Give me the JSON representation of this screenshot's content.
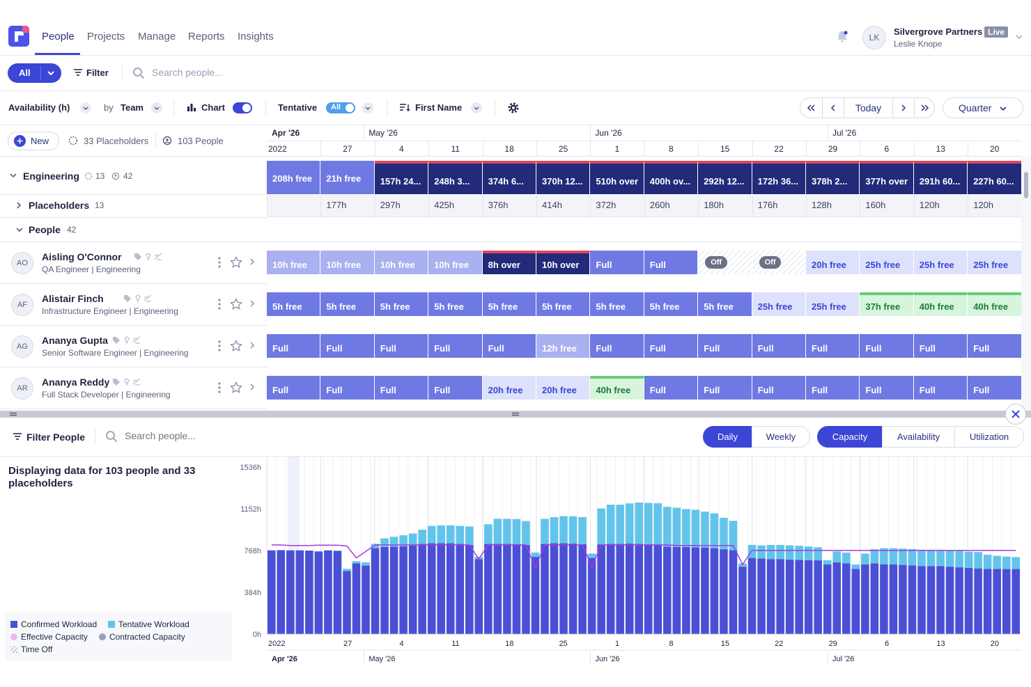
{
  "nav": {
    "tabs": [
      {
        "label": "People",
        "active": true
      },
      {
        "label": "Projects"
      },
      {
        "label": "Manage"
      },
      {
        "label": "Reports"
      },
      {
        "label": "Insights"
      }
    ],
    "avatar_initials": "LK",
    "org_name": "Silvergrove Partners",
    "org_badge": "Live",
    "user_name": "Leslie Knope"
  },
  "filterbar": {
    "all_label": "All",
    "filter_label": "Filter",
    "search_placeholder": "Search people..."
  },
  "toolbar": {
    "metric_label": "Availability (h)",
    "by_label": "by",
    "group_label": "Team",
    "chart_label": "Chart",
    "tentative_label": "Tentative",
    "tentative_value": "All",
    "sort_label": "First Name",
    "today_label": "Today",
    "range_label": "Quarter"
  },
  "leftheader": {
    "new_label": "New",
    "placeholders_label": "33 Placeholders",
    "people_label": "103 People"
  },
  "timeline": {
    "months": [
      {
        "label": "Apr '26",
        "col": 0
      },
      {
        "label": "May '26",
        "col": 1.8
      },
      {
        "label": "Jun '26",
        "col": 6
      },
      {
        "label": "Jul '26",
        "col": 10.4
      }
    ],
    "year_stub": "2022",
    "weeks": [
      "",
      "27",
      "4",
      "11",
      "18",
      "25",
      "1",
      "8",
      "15",
      "22",
      "29",
      "6",
      "13",
      "20"
    ]
  },
  "engineering": {
    "label": "Engineering",
    "placeholders_count": "13",
    "people_count": "42",
    "cells": [
      {
        "label": "208h free",
        "kind": "free"
      },
      {
        "label": "21h free",
        "kind": "free"
      },
      {
        "label": "157h 24...",
        "kind": "over"
      },
      {
        "label": "248h 3...",
        "kind": "over"
      },
      {
        "label": "374h 6...",
        "kind": "over"
      },
      {
        "label": "370h 12...",
        "kind": "over"
      },
      {
        "label": "510h over",
        "kind": "over"
      },
      {
        "label": "400h ov...",
        "kind": "over"
      },
      {
        "label": "292h 12...",
        "kind": "over"
      },
      {
        "label": "172h 36...",
        "kind": "over"
      },
      {
        "label": "378h 2...",
        "kind": "over"
      },
      {
        "label": "377h over",
        "kind": "over"
      },
      {
        "label": "291h 60...",
        "kind": "over"
      },
      {
        "label": "227h 60...",
        "kind": "over"
      }
    ]
  },
  "placeholders": {
    "label": "Placeholders",
    "count": "13",
    "cells": [
      "",
      "177h",
      "297h",
      "425h",
      "376h",
      "414h",
      "372h",
      "260h",
      "180h",
      "176h",
      "128h",
      "160h",
      "120h",
      "120h"
    ]
  },
  "people_group": {
    "label": "People",
    "count": "42"
  },
  "people": [
    {
      "initials": "AO",
      "name": "Aisling O'Connor",
      "role": "QA Engineer | Engineering",
      "cells": [
        {
          "label": "10h free",
          "kind": "light"
        },
        {
          "label": "10h free",
          "kind": "light"
        },
        {
          "label": "10h free",
          "kind": "light"
        },
        {
          "label": "10h free",
          "kind": "light"
        },
        {
          "label": "8h over",
          "kind": "over"
        },
        {
          "label": "10h over",
          "kind": "over"
        },
        {
          "label": "Full",
          "kind": "full"
        },
        {
          "label": "Full",
          "kind": "full"
        },
        {
          "label": "Off",
          "kind": "off"
        },
        {
          "label": "Off",
          "kind": "off"
        },
        {
          "label": "20h free",
          "kind": "pale"
        },
        {
          "label": "25h free",
          "kind": "pale"
        },
        {
          "label": "25h free",
          "kind": "pale"
        },
        {
          "label": "25h free",
          "kind": "pale"
        }
      ]
    },
    {
      "initials": "AF",
      "name": "Alistair Finch",
      "role": "Infrastructure Engineer | Engineering",
      "cells": [
        {
          "label": "5h free",
          "kind": "full"
        },
        {
          "label": "5h free",
          "kind": "full"
        },
        {
          "label": "5h free",
          "kind": "full"
        },
        {
          "label": "5h free",
          "kind": "full"
        },
        {
          "label": "5h free",
          "kind": "full"
        },
        {
          "label": "5h free",
          "kind": "full"
        },
        {
          "label": "5h free",
          "kind": "full"
        },
        {
          "label": "5h free",
          "kind": "full"
        },
        {
          "label": "5h free",
          "kind": "full"
        },
        {
          "label": "25h free",
          "kind": "pale"
        },
        {
          "label": "25h free",
          "kind": "pale"
        },
        {
          "label": "37h free",
          "kind": "green"
        },
        {
          "label": "40h free",
          "kind": "green"
        },
        {
          "label": "40h free",
          "kind": "green"
        }
      ]
    },
    {
      "initials": "AG",
      "name": "Ananya Gupta",
      "role": "Senior Software Engineer | Engineering",
      "cells": [
        {
          "label": "Full",
          "kind": "full"
        },
        {
          "label": "Full",
          "kind": "full"
        },
        {
          "label": "Full",
          "kind": "full"
        },
        {
          "label": "Full",
          "kind": "full"
        },
        {
          "label": "Full",
          "kind": "full"
        },
        {
          "label": "12h free",
          "kind": "light"
        },
        {
          "label": "Full",
          "kind": "full"
        },
        {
          "label": "Full",
          "kind": "full"
        },
        {
          "label": "Full",
          "kind": "full"
        },
        {
          "label": "Full",
          "kind": "full"
        },
        {
          "label": "Full",
          "kind": "full"
        },
        {
          "label": "Full",
          "kind": "full"
        },
        {
          "label": "Full",
          "kind": "full"
        },
        {
          "label": "Full",
          "kind": "full"
        }
      ]
    },
    {
      "initials": "AR",
      "name": "Ananya Reddy",
      "role": "Full Stack Developer | Engineering",
      "cells": [
        {
          "label": "Full",
          "kind": "full"
        },
        {
          "label": "Full",
          "kind": "full"
        },
        {
          "label": "Full",
          "kind": "full"
        },
        {
          "label": "Full",
          "kind": "full"
        },
        {
          "label": "20h free",
          "kind": "pale"
        },
        {
          "label": "20h free",
          "kind": "pale"
        },
        {
          "label": "40h free",
          "kind": "green"
        },
        {
          "label": "Full",
          "kind": "full"
        },
        {
          "label": "Full",
          "kind": "full"
        },
        {
          "label": "Full",
          "kind": "full"
        },
        {
          "label": "Full",
          "kind": "full"
        },
        {
          "label": "Full",
          "kind": "full"
        },
        {
          "label": "Full",
          "kind": "full"
        },
        {
          "label": "Full",
          "kind": "full"
        }
      ]
    }
  ],
  "bottom": {
    "filter_label": "Filter People",
    "search_placeholder": "Search people...",
    "daily": "Daily",
    "weekly": "Weekly",
    "capacity": "Capacity",
    "availability": "Availability",
    "utilization": "Utilization",
    "summary": "Displaying data for 103 people and 33 placeholders"
  },
  "legend": {
    "confirmed": "Confirmed Workload",
    "tentative": "Tentative Workload",
    "effective": "Effective Capacity",
    "contracted": "Contracted Capacity",
    "timeoff": "Time Off"
  },
  "colors": {
    "primary": "#3b46d6",
    "free": "#6f79e3",
    "over": "#232a7a",
    "over_top": "#e0475d",
    "light": "#aab1f0",
    "pale": "#dde1fb",
    "green": "#d6f5dc",
    "green_top": "#66cc7a",
    "confirmed": "#4a4fd6",
    "tentative": "#62c4ea",
    "effective": "#a63ce0",
    "contracted": "#9aa0b5"
  },
  "chart_data": {
    "type": "bar",
    "ylabel": "",
    "ylim": [
      0,
      1536
    ],
    "yticks": [
      "0h",
      "384h",
      "768h",
      "1152h",
      "1536h"
    ],
    "ytick_values": [
      0,
      384,
      768,
      1152,
      1536
    ],
    "x_week_labels": [
      "2022",
      "27",
      "4",
      "11",
      "18",
      "25",
      "1",
      "8",
      "15",
      "22",
      "29",
      "6",
      "13",
      "20"
    ],
    "x_month_labels": [
      "Apr '26",
      "May '26",
      "Jun '26",
      "Jul '26"
    ],
    "series": [
      {
        "name": "Confirmed Workload",
        "values": [
          770,
          772,
          770,
          770,
          768,
          760,
          770,
          766,
          580,
          650,
          630,
          790,
          800,
          805,
          808,
          815,
          830,
          835,
          835,
          835,
          830,
          820,
          690,
          830,
          830,
          830,
          828,
          820,
          710,
          830,
          835,
          835,
          833,
          826,
          700,
          825,
          830,
          830,
          832,
          830,
          826,
          824,
          805,
          802,
          800,
          798,
          796,
          790,
          780,
          772,
          620,
          700,
          695,
          690,
          690,
          686,
          682,
          680,
          678,
          640,
          660,
          650,
          600,
          640,
          650,
          640,
          640,
          636,
          632,
          626,
          626,
          626,
          620,
          614,
          608,
          604,
          600,
          600,
          598,
          598
        ]
      },
      {
        "name": "Tentative Workload",
        "values": [
          0,
          0,
          0,
          0,
          0,
          0,
          0,
          0,
          20,
          20,
          30,
          40,
          80,
          90,
          100,
          110,
          130,
          160,
          165,
          165,
          165,
          170,
          20,
          180,
          230,
          230,
          230,
          220,
          40,
          230,
          240,
          250,
          250,
          250,
          40,
          330,
          360,
          360,
          370,
          380,
          380,
          380,
          365,
          360,
          350,
          345,
          330,
          320,
          290,
          270,
          30,
          120,
          120,
          130,
          130,
          130,
          130,
          125,
          120,
          40,
          100,
          100,
          40,
          100,
          130,
          150,
          150,
          150,
          150,
          150,
          150,
          150,
          150,
          150,
          150,
          150,
          130,
          120,
          115,
          110
        ]
      },
      {
        "name": "Effective Capacity",
        "values": [
          820,
          820,
          815,
          815,
          815,
          818,
          818,
          818,
          810,
          700,
          760,
          820,
          820,
          820,
          820,
          820,
          820,
          820,
          820,
          820,
          820,
          820,
          690,
          820,
          820,
          820,
          820,
          820,
          610,
          820,
          820,
          820,
          820,
          820,
          620,
          820,
          820,
          820,
          820,
          820,
          820,
          820,
          820,
          815,
          815,
          815,
          815,
          815,
          815,
          815,
          640,
          770,
          770,
          770,
          770,
          770,
          770,
          770,
          770,
          770,
          770,
          770,
          770,
          770,
          770,
          770,
          770,
          770,
          770,
          770,
          770,
          770,
          770,
          770,
          770,
          770,
          770,
          770,
          770,
          770
        ]
      }
    ]
  }
}
